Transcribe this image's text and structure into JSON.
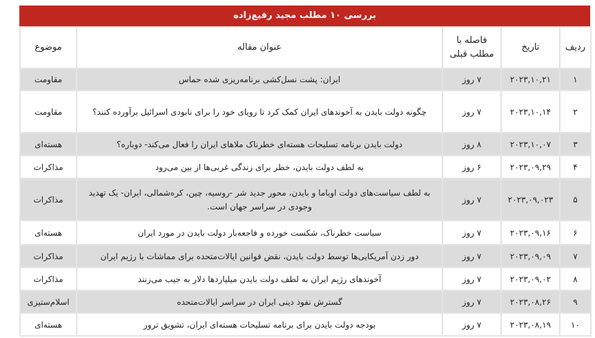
{
  "title": "بررسی ۱۰ مطلب مجید رفیع‌زاده",
  "headers": {
    "row": "ردیف",
    "date": "تاریخ",
    "gap": "فاصله با مطلب قبلی",
    "headline": "عنوان مقاله",
    "topic": "موضوع"
  },
  "rows": [
    {
      "n": "۱",
      "date": "۲۰۲۳,۱۰,۲۱",
      "gap": "۷ روز",
      "headline": "ایران: پشت نسل‌کشی برنامه‌ریزی شده حماس",
      "topic": "مقاومت"
    },
    {
      "n": "۲",
      "date": "۲۰۲۳,۱۰,۱۴",
      "gap": "۷ روز",
      "headline": "چگونه دولت بایدن به آخوندهای ایران کمک کرد تا رویای خود را برای نابودی اسرائیل برآورده کنند؟",
      "topic": "مقاومت"
    },
    {
      "n": "۳",
      "date": "۲۰۲۳,۱۰,۰۷",
      "gap": "۸ روز",
      "headline": "دولت بایدن برنامه تسلیحات هسته‌ای خطرناک ملاهای ایران را فعال می‌کند- دوباره؟",
      "topic": "هسته‌ای"
    },
    {
      "n": "۴",
      "date": "۲۰۲۳,۰۹,۲۹",
      "gap": "۶ روز",
      "headline": "به لطف دولت بایدن، خطر برای زندگی غربی‌ها از بین می‌رود",
      "topic": "مذاکرات"
    },
    {
      "n": "۵",
      "date": "۲۰۲۳,۰۹,۰۲۳",
      "gap": "۷ روز",
      "headline": "به لطف سیاست‌های دولت اوباما و بایدن، محور جدید شر -روسیه، چین، کره‌شمالی، ایران- یک تهدید وجودی در سراسر جهان است.",
      "topic": "مذاکرات"
    },
    {
      "n": "۶",
      "date": "۲۰۲۳,۰۹,۱۶",
      "gap": "۷ روز",
      "headline": "سیاست خطرناک، شکست خورده و فاجعه‌بار دولت بایدن در مورد ایران",
      "topic": "هسته‌ای"
    },
    {
      "n": "۷",
      "date": "۲۰۲۳,۰۹,۰۹",
      "gap": "۷ روز",
      "headline": "دور زدن آمریکایی‌ها توسط دولت بایدن، نقض قوانین ایالات‌متحده برای مماشات با رژیم ایران",
      "topic": "مذاکرات"
    },
    {
      "n": "۸",
      "date": "۲۰۲۳,۰۹,۰۲",
      "gap": "۷ روز",
      "headline": "آخوندهای رژیم ایران به لطف دولت بایدن میلیاردها دلار به جیب می‌زنند",
      "topic": "مذاکرات"
    },
    {
      "n": "۹",
      "date": "۲۰۲۳,۰۸,۲۶",
      "gap": "۷ روز",
      "headline": "گسترش نفوذ دینی ایران در سراسر ایالات‌متحده",
      "topic": "اسلام‌ستیزی"
    },
    {
      "n": "۱۰",
      "date": "۲۰۲۳,۰۸,۱۹",
      "gap": "۷ روز",
      "headline": "بودجه دولت بایدن برای برنامه تسلیحات هسته‌ای ایران، تشویق ترور",
      "topic": "هسته‌ای"
    }
  ]
}
